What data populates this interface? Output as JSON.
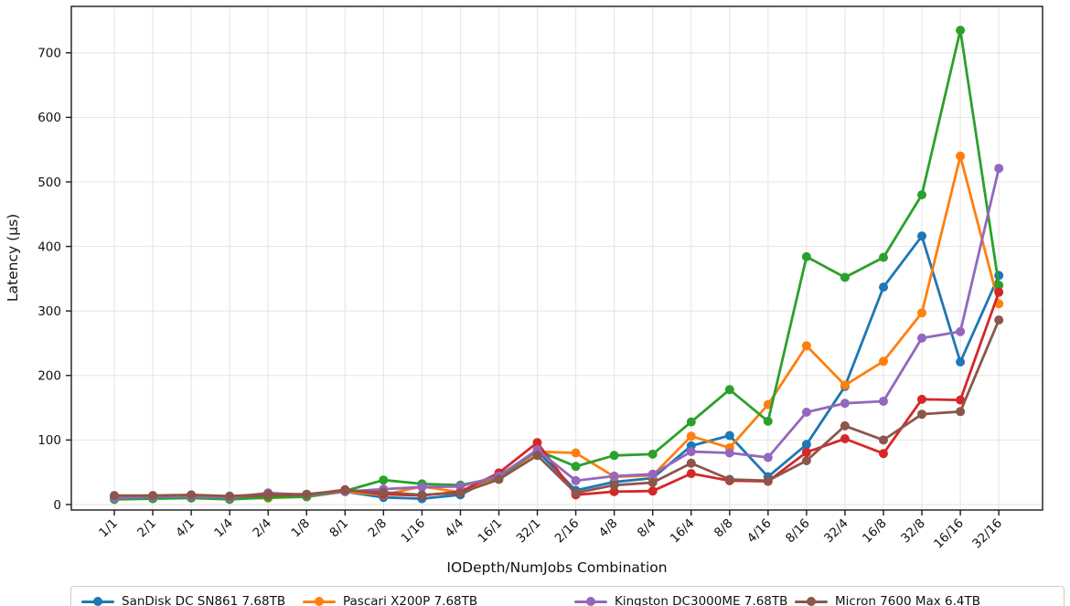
{
  "chart_data": {
    "type": "line",
    "title": "",
    "xlabel": "IODepth/NumJobs Combination",
    "ylabel": "Latency (µs)",
    "categories": [
      "1/1",
      "2/1",
      "4/1",
      "1/4",
      "2/4",
      "1/8",
      "8/1",
      "2/8",
      "1/16",
      "4/4",
      "16/1",
      "32/1",
      "2/16",
      "4/8",
      "8/4",
      "16/4",
      "8/8",
      "4/16",
      "8/16",
      "32/4",
      "16/8",
      "32/8",
      "16/16",
      "32/16"
    ],
    "yticks": [
      0,
      100,
      200,
      300,
      400,
      500,
      600,
      700
    ],
    "ylim": [
      -10,
      772
    ],
    "grid": true,
    "legend_position": "bottom",
    "series": [
      {
        "name": "SanDisk DC SN861 7.68TB",
        "color": "#1f77b4",
        "in_legend": true,
        "values": [
          9,
          10,
          11,
          9,
          12,
          13,
          20,
          11,
          9,
          15,
          45,
          83,
          22,
          35,
          41,
          91,
          107,
          43,
          93,
          183,
          337,
          416,
          221,
          355
        ]
      },
      {
        "name": "Pascari X200P 7.68TB",
        "color": "#ff7f0e",
        "in_legend": true,
        "values": [
          10,
          11,
          12,
          9,
          10,
          12,
          20,
          15,
          28,
          19,
          41,
          82,
          80,
          43,
          45,
          106,
          88,
          155,
          246,
          185,
          222,
          297,
          540,
          311
        ]
      },
      {
        "name": "",
        "color": "#2ca02c",
        "in_legend": false,
        "values": [
          8,
          9,
          10,
          8,
          11,
          12,
          21,
          38,
          32,
          30,
          42,
          84,
          59,
          76,
          78,
          128,
          178,
          129,
          384,
          352,
          383,
          480,
          735,
          340
        ]
      },
      {
        "name": "",
        "color": "#d62728",
        "in_legend": false,
        "values": [
          12,
          13,
          14,
          12,
          15,
          15,
          23,
          16,
          14,
          20,
          49,
          96,
          15,
          20,
          21,
          48,
          37,
          36,
          81,
          102,
          79,
          163,
          162,
          329
        ]
      },
      {
        "name": "Kingston DC3000ME 7.68TB",
        "color": "#9467bd",
        "in_legend": true,
        "values": [
          10,
          12,
          13,
          11,
          18,
          15,
          20,
          24,
          27,
          28,
          44,
          85,
          37,
          44,
          47,
          82,
          80,
          73,
          143,
          157,
          160,
          258,
          268,
          521
        ]
      },
      {
        "name": "Micron 7600 Max 6.4TB",
        "color": "#8c564b",
        "in_legend": true,
        "values": [
          14,
          14,
          15,
          13,
          16,
          16,
          22,
          19,
          15,
          18,
          39,
          76,
          18,
          30,
          34,
          64,
          39,
          37,
          68,
          122,
          100,
          140,
          144,
          286
        ]
      }
    ]
  },
  "axes": {
    "xlabel": "IODepth/NumJobs Combination",
    "ylabel": "Latency (µs)"
  },
  "legend": {
    "items": [
      {
        "label": "SanDisk DC SN861 7.68TB",
        "color": "#1f77b4"
      },
      {
        "label": "Pascari X200P 7.68TB",
        "color": "#ff7f0e"
      },
      {
        "label": "Kingston DC3000ME 7.68TB",
        "color": "#9467bd"
      },
      {
        "label": "Micron 7600 Max 6.4TB",
        "color": "#8c564b"
      }
    ]
  },
  "style": {
    "grid_color": "#e6e6e6",
    "spine_color": "#1a1a1a",
    "background": "#ffffff"
  }
}
